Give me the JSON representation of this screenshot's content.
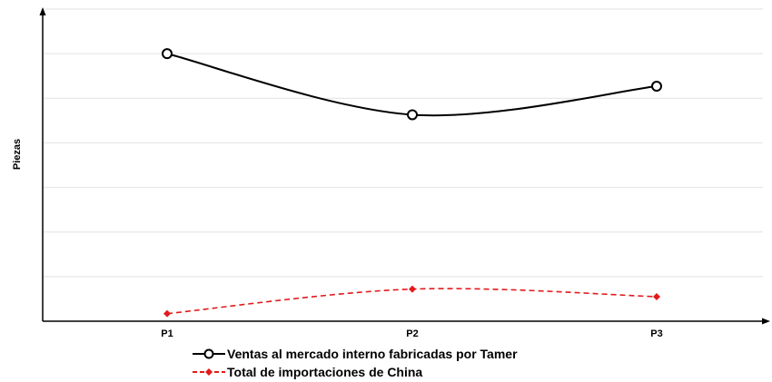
{
  "chart_data": {
    "type": "line",
    "title": "",
    "xlabel": "",
    "ylabel": "Piezas",
    "categories": [
      "P1",
      "P2",
      "P3"
    ],
    "ylim": [
      0,
      7
    ],
    "grid": true,
    "legend_placement": "bottom",
    "series": [
      {
        "name": "Ventas al mercado interno fabricadas por Tamer",
        "values": [
          6.0,
          4.63,
          5.27
        ],
        "color": "#000000",
        "marker": "circle-open",
        "line_style": "solid"
      },
      {
        "name": "Total de importaciones de China",
        "values": [
          0.17,
          0.72,
          0.55
        ],
        "color": "#e31a1c",
        "marker": "diamond-filled",
        "line_style": "dashed"
      }
    ]
  }
}
